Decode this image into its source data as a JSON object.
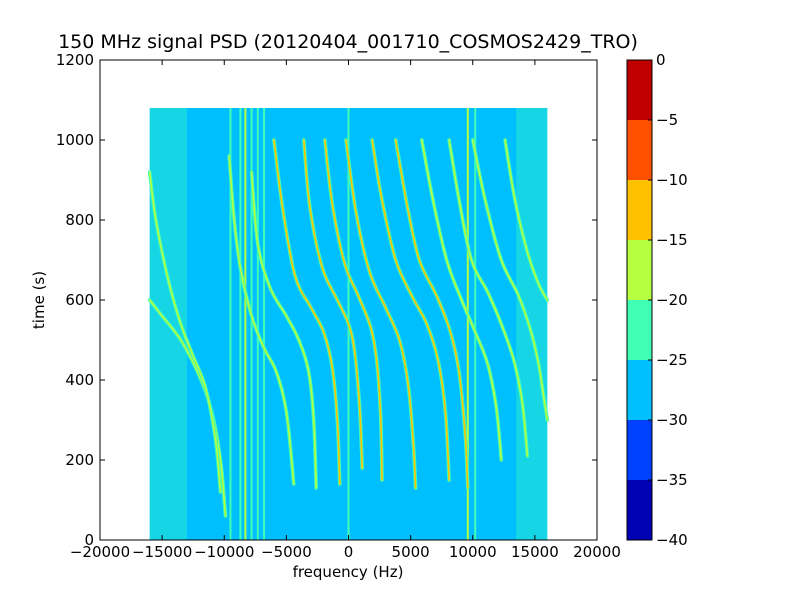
{
  "chart_data": {
    "type": "heatmap",
    "title": "150 MHz signal PSD (20120404_001710_COSMOS2429_TRO)",
    "xlabel": "frequency (Hz)",
    "ylabel": "time (s)",
    "xlim": [
      -20000,
      20000
    ],
    "ylim": [
      0,
      1200
    ],
    "x_ticks": [
      -20000,
      -15000,
      -10000,
      -5000,
      0,
      5000,
      10000,
      15000,
      20000
    ],
    "y_ticks": [
      0,
      200,
      400,
      600,
      800,
      1000,
      1200
    ],
    "data_extent": {
      "x": [
        -16000,
        16000
      ],
      "y": [
        0,
        1080
      ]
    },
    "background_level": -27.5,
    "colorbar": {
      "levels": [
        -40,
        -35,
        -30,
        -25,
        -20,
        -15,
        -10,
        -5,
        0
      ],
      "tick_labels": [
        "0",
        "−5",
        "−10",
        "−15",
        "−20",
        "−25",
        "−30",
        "−35",
        "−40"
      ],
      "band_colors": [
        "#0000b5",
        "#0040ff",
        "#00bfff",
        "#40ffb5",
        "#b5ff40",
        "#ffc000",
        "#ff5000",
        "#c00000"
      ]
    },
    "noise_edges": [
      {
        "x": [
          -16000,
          -13000
        ],
        "level": -22.5
      },
      {
        "x": [
          13500,
          16000
        ],
        "level": -22.5
      }
    ],
    "vertical_lines": [
      {
        "x": -9500,
        "y": [
          0,
          1080
        ],
        "level": -22.5
      },
      {
        "x": -8700,
        "y": [
          0,
          1080
        ],
        "level": -22.5
      },
      {
        "x": -8300,
        "y": [
          0,
          1080
        ],
        "level": -17.5
      },
      {
        "x": -7800,
        "y": [
          0,
          1080
        ],
        "level": -22.5
      },
      {
        "x": -7300,
        "y": [
          0,
          1080
        ],
        "level": -22.5
      },
      {
        "x": -6800,
        "y": [
          0,
          1080
        ],
        "level": -22.5
      },
      {
        "x": 0,
        "y": [
          0,
          1080
        ],
        "level": -22.5
      },
      {
        "x": 9600,
        "y": [
          0,
          1080
        ],
        "level": -17.5
      },
      {
        "x": 10200,
        "y": [
          0,
          1080
        ],
        "level": -22.5
      }
    ],
    "tracks": [
      {
        "points": [
          [
            -16000,
            600
          ],
          [
            -15000,
            560
          ],
          [
            -13500,
            500
          ],
          [
            -12000,
            410
          ],
          [
            -11000,
            320
          ],
          [
            -10300,
            200
          ],
          [
            -9900,
            60
          ]
        ],
        "level": -17.5
      },
      {
        "points": [
          [
            -16000,
            920
          ],
          [
            -15500,
            800
          ],
          [
            -14500,
            650
          ],
          [
            -13500,
            540
          ],
          [
            -12500,
            460
          ],
          [
            -11500,
            380
          ],
          [
            -10700,
            250
          ],
          [
            -10300,
            120
          ]
        ],
        "level": -17.5
      },
      {
        "points": [
          [
            -9600,
            960
          ],
          [
            -9200,
            800
          ],
          [
            -8700,
            680
          ],
          [
            -7800,
            560
          ],
          [
            -6800,
            480
          ],
          [
            -5800,
            420
          ],
          [
            -5000,
            320
          ],
          [
            -4400,
            140
          ]
        ],
        "level": -17.5
      },
      {
        "points": [
          [
            -7800,
            920
          ],
          [
            -7300,
            740
          ],
          [
            -6300,
            630
          ],
          [
            -5000,
            560
          ],
          [
            -4000,
            500
          ],
          [
            -3200,
            420
          ],
          [
            -2800,
            300
          ],
          [
            -2600,
            130
          ]
        ],
        "level": -17.5
      },
      {
        "points": [
          [
            -6000,
            1000
          ],
          [
            -5300,
            830
          ],
          [
            -4300,
            660
          ],
          [
            -3000,
            580
          ],
          [
            -2000,
            520
          ],
          [
            -1300,
            430
          ],
          [
            -900,
            300
          ],
          [
            -700,
            140
          ]
        ],
        "level": -12.5
      },
      {
        "points": [
          [
            -3600,
            1000
          ],
          [
            -3100,
            830
          ],
          [
            -2100,
            680
          ],
          [
            -900,
            600
          ],
          [
            0,
            540
          ],
          [
            500,
            470
          ],
          [
            900,
            330
          ],
          [
            1100,
            180
          ]
        ],
        "level": -12.5
      },
      {
        "points": [
          [
            -1900,
            1000
          ],
          [
            -1300,
            840
          ],
          [
            -300,
            690
          ],
          [
            800,
            610
          ],
          [
            1800,
            530
          ],
          [
            2300,
            440
          ],
          [
            2600,
            300
          ],
          [
            2700,
            150
          ]
        ],
        "level": -12.5
      },
      {
        "points": [
          [
            -200,
            1000
          ],
          [
            600,
            820
          ],
          [
            1700,
            670
          ],
          [
            3000,
            580
          ],
          [
            4100,
            500
          ],
          [
            4800,
            390
          ],
          [
            5200,
            250
          ],
          [
            5400,
            130
          ]
        ],
        "level": -12.5
      },
      {
        "points": [
          [
            1900,
            1000
          ],
          [
            2700,
            850
          ],
          [
            3800,
            700
          ],
          [
            5100,
            610
          ],
          [
            6300,
            540
          ],
          [
            7200,
            450
          ],
          [
            7800,
            320
          ],
          [
            8100,
            150
          ]
        ],
        "level": -12.5
      },
      {
        "points": [
          [
            3800,
            1000
          ],
          [
            4700,
            840
          ],
          [
            5700,
            700
          ],
          [
            7100,
            610
          ],
          [
            8200,
            520
          ],
          [
            8900,
            420
          ],
          [
            9400,
            260
          ],
          [
            9600,
            130
          ]
        ],
        "level": -12.5
      },
      {
        "points": [
          [
            5900,
            1000
          ],
          [
            6800,
            850
          ],
          [
            7900,
            700
          ],
          [
            9100,
            600
          ],
          [
            10200,
            520
          ],
          [
            11200,
            440
          ],
          [
            11900,
            330
          ],
          [
            12300,
            200
          ]
        ],
        "level": -17.5
      },
      {
        "points": [
          [
            8100,
            1000
          ],
          [
            8900,
            850
          ],
          [
            9900,
            700
          ],
          [
            11200,
            620
          ],
          [
            12300,
            540
          ],
          [
            13300,
            450
          ],
          [
            14000,
            340
          ],
          [
            14400,
            210
          ]
        ],
        "level": -17.5
      },
      {
        "points": [
          [
            10000,
            1000
          ],
          [
            11000,
            850
          ],
          [
            12300,
            700
          ],
          [
            13700,
            610
          ],
          [
            14700,
            520
          ],
          [
            15300,
            440
          ],
          [
            15700,
            360
          ],
          [
            16000,
            300
          ]
        ],
        "level": -17.5
      },
      {
        "points": [
          [
            12600,
            1000
          ],
          [
            13400,
            850
          ],
          [
            14400,
            720
          ],
          [
            15300,
            640
          ],
          [
            16000,
            600
          ]
        ],
        "level": -17.5
      }
    ]
  }
}
